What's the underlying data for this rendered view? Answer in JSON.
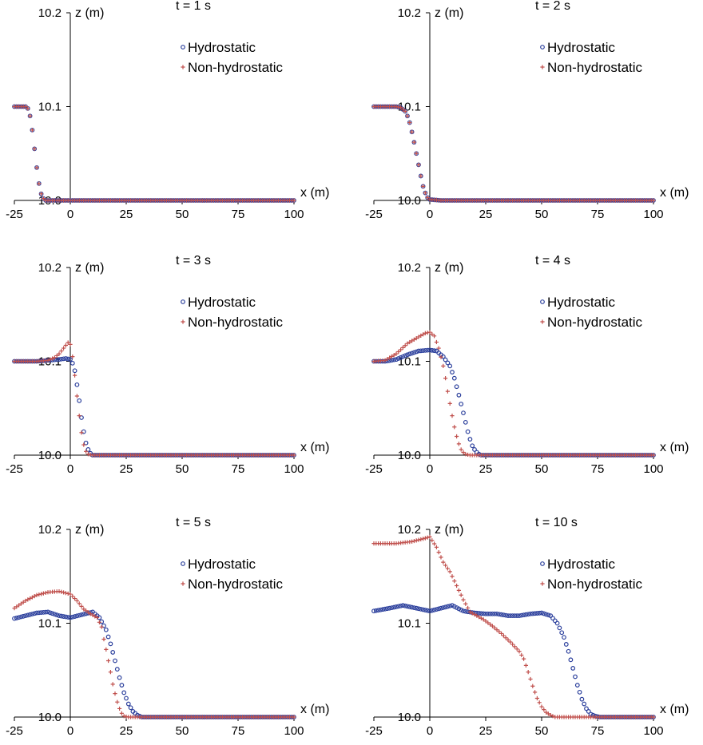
{
  "colors": {
    "hydrostatic": "#2b3f9c",
    "non_hydrostatic": "#c0504d",
    "axis": "#000000"
  },
  "chart_data": [
    {
      "type": "scatter",
      "title": "t = 1 s",
      "xlabel": "x (m)",
      "ylabel": "z (m)",
      "xlim": [
        -25,
        100
      ],
      "ylim": [
        10.0,
        10.2
      ],
      "xticks": [
        "-25",
        "0",
        "25",
        "50",
        "75",
        "100"
      ],
      "yticks": [
        "10.0",
        "10.1",
        "10.2"
      ],
      "legend_placement": "top-right",
      "series": [
        {
          "name": "Hydrostatic",
          "marker": "circle",
          "x": [
            -25,
            -20,
            -19,
            -18,
            -17,
            -16,
            -15,
            -14,
            -13,
            -12,
            -11,
            -10,
            -5,
            0,
            25,
            50,
            75,
            100
          ],
          "y": [
            10.1,
            10.1,
            10.098,
            10.09,
            10.075,
            10.055,
            10.035,
            10.018,
            10.007,
            10.002,
            10.0,
            10.0,
            10.0,
            10.0,
            10.0,
            10.0,
            10.0,
            10.0
          ]
        },
        {
          "name": "Non-hydrostatic",
          "marker": "plus",
          "x": [
            -25,
            -20,
            -19,
            -18,
            -17,
            -16,
            -15,
            -14,
            -13,
            -12,
            -11,
            -10,
            -5,
            0,
            25,
            50,
            75,
            100
          ],
          "y": [
            10.1,
            10.1,
            10.098,
            10.09,
            10.075,
            10.055,
            10.035,
            10.018,
            10.007,
            10.002,
            10.0,
            10.0,
            10.0,
            10.0,
            10.0,
            10.0,
            10.0,
            10.0
          ]
        }
      ]
    },
    {
      "type": "scatter",
      "title": "t = 2 s",
      "xlabel": "x (m)",
      "ylabel": "z (m)",
      "xlim": [
        -25,
        100
      ],
      "ylim": [
        10.0,
        10.2
      ],
      "xticks": [
        "-25",
        "0",
        "25",
        "50",
        "75",
        "100"
      ],
      "yticks": [
        "10.0",
        "10.1",
        "10.2"
      ],
      "legend_placement": "top-right",
      "series": [
        {
          "name": "Hydrostatic",
          "marker": "circle",
          "x": [
            -25,
            -15,
            -13,
            -11,
            -10,
            -9,
            -8,
            -7,
            -6,
            -5,
            -4,
            -3,
            -2,
            -1,
            0,
            5,
            25,
            50,
            75,
            100
          ],
          "y": [
            10.1,
            10.1,
            10.099,
            10.095,
            10.09,
            10.083,
            10.073,
            10.062,
            10.05,
            10.038,
            10.026,
            10.015,
            10.008,
            10.003,
            10.001,
            10.0,
            10.0,
            10.0,
            10.0,
            10.0
          ]
        },
        {
          "name": "Non-hydrostatic",
          "marker": "plus",
          "x": [
            -25,
            -15,
            -13,
            -11,
            -10,
            -9,
            -8,
            -7,
            -6,
            -5,
            -4,
            -3,
            -2,
            -1,
            0,
            5,
            25,
            50,
            75,
            100
          ],
          "y": [
            10.1,
            10.1,
            10.099,
            10.095,
            10.09,
            10.083,
            10.073,
            10.062,
            10.05,
            10.038,
            10.026,
            10.015,
            10.008,
            10.003,
            10.001,
            10.0,
            10.0,
            10.0,
            10.0,
            10.0
          ]
        }
      ]
    },
    {
      "type": "scatter",
      "title": "t = 3 s",
      "xlabel": "x (m)",
      "ylabel": "z (m)",
      "xlim": [
        -25,
        100
      ],
      "ylim": [
        10.0,
        10.2
      ],
      "xticks": [
        "-25",
        "0",
        "25",
        "50",
        "75",
        "100"
      ],
      "yticks": [
        "10.0",
        "10.1",
        "10.2"
      ],
      "legend_placement": "top-right",
      "series": [
        {
          "name": "Hydrostatic",
          "marker": "circle",
          "x": [
            -25,
            -15,
            -10,
            -5,
            -2,
            0,
            1,
            2,
            3,
            4,
            5,
            6,
            7,
            8,
            9,
            10,
            12,
            25,
            50,
            75,
            100
          ],
          "y": [
            10.1,
            10.1,
            10.101,
            10.102,
            10.103,
            10.102,
            10.098,
            10.09,
            10.075,
            10.058,
            10.04,
            10.025,
            10.013,
            10.006,
            10.002,
            10.0,
            10.0,
            10.0,
            10.0,
            10.0,
            10.0
          ]
        },
        {
          "name": "Non-hydrostatic",
          "marker": "plus",
          "x": [
            -25,
            -15,
            -10,
            -7,
            -5,
            -3,
            -1,
            0,
            1,
            2,
            3,
            4,
            5,
            6,
            7,
            8,
            10,
            25,
            50,
            75,
            100
          ],
          "y": [
            10.1,
            10.1,
            10.101,
            10.104,
            10.108,
            10.114,
            10.12,
            10.118,
            10.105,
            10.085,
            10.063,
            10.042,
            10.024,
            10.011,
            10.004,
            10.001,
            10.0,
            10.0,
            10.0,
            10.0,
            10.0
          ]
        }
      ]
    },
    {
      "type": "scatter",
      "title": "t = 4 s",
      "xlabel": "x (m)",
      "ylabel": "z (m)",
      "xlim": [
        -25,
        100
      ],
      "ylim": [
        10.0,
        10.2
      ],
      "xticks": [
        "-25",
        "0",
        "25",
        "50",
        "75",
        "100"
      ],
      "yticks": [
        "10.0",
        "10.1",
        "10.2"
      ],
      "legend_placement": "top-right",
      "series": [
        {
          "name": "Hydrostatic",
          "marker": "circle",
          "x": [
            -25,
            -20,
            -15,
            -10,
            -5,
            0,
            3,
            6,
            9,
            11,
            13,
            15,
            16,
            17,
            18,
            19,
            20,
            21,
            22,
            23,
            25,
            50,
            75,
            100
          ],
          "y": [
            10.1,
            10.1,
            10.102,
            10.107,
            10.111,
            10.112,
            10.111,
            10.105,
            10.095,
            10.082,
            10.064,
            10.045,
            10.035,
            10.025,
            10.017,
            10.01,
            10.006,
            10.003,
            10.001,
            10.0,
            10.0,
            10.0,
            10.0,
            10.0
          ]
        },
        {
          "name": "Non-hydrostatic",
          "marker": "plus",
          "x": [
            -25,
            -20,
            -15,
            -10,
            -5,
            -2,
            0,
            2,
            4,
            6,
            7,
            8,
            9,
            10,
            11,
            12,
            13,
            14,
            15,
            16,
            18,
            25,
            50,
            75,
            100
          ],
          "y": [
            10.1,
            10.101,
            10.108,
            10.119,
            10.126,
            10.13,
            10.131,
            10.127,
            10.114,
            10.095,
            10.082,
            10.068,
            10.055,
            10.042,
            10.03,
            10.02,
            10.012,
            10.006,
            10.003,
            10.001,
            10.0,
            10.0,
            10.0,
            10.0,
            10.0
          ]
        }
      ]
    },
    {
      "type": "scatter",
      "title": "t = 5 s",
      "xlabel": "x (m)",
      "ylabel": "z (m)",
      "xlim": [
        -25,
        100
      ],
      "ylim": [
        10.0,
        10.2
      ],
      "xticks": [
        "-25",
        "0",
        "25",
        "50",
        "75",
        "100"
      ],
      "yticks": [
        "10.0",
        "10.1",
        "10.2"
      ],
      "legend_placement": "top-right",
      "series": [
        {
          "name": "Hydrostatic",
          "marker": "circle",
          "x": [
            -25,
            -20,
            -15,
            -10,
            -5,
            0,
            5,
            10,
            13,
            16,
            18,
            20,
            22,
            24,
            26,
            28,
            30,
            32,
            35,
            50,
            75,
            100
          ],
          "y": [
            10.105,
            10.108,
            10.111,
            10.112,
            10.108,
            10.106,
            10.109,
            10.112,
            10.106,
            10.093,
            10.078,
            10.06,
            10.042,
            10.026,
            10.014,
            10.006,
            10.002,
            10.0,
            10.0,
            10.0,
            10.0,
            10.0
          ]
        },
        {
          "name": "Non-hydrostatic",
          "marker": "plus",
          "x": [
            -25,
            -20,
            -15,
            -10,
            -5,
            0,
            3,
            6,
            9,
            12,
            14,
            15,
            16,
            17,
            18,
            19,
            20,
            21,
            22,
            23,
            24,
            26,
            30,
            50,
            75,
            100
          ],
          "y": [
            10.116,
            10.124,
            10.13,
            10.133,
            10.134,
            10.131,
            10.124,
            10.115,
            10.11,
            10.106,
            10.096,
            10.083,
            10.072,
            10.06,
            10.048,
            10.035,
            10.025,
            10.016,
            10.009,
            10.004,
            10.001,
            10.0,
            10.0,
            10.0,
            10.0,
            10.0
          ]
        }
      ]
    },
    {
      "type": "scatter",
      "title": "t = 10 s",
      "xlabel": "x (m)",
      "ylabel": "z (m)",
      "xlim": [
        -25,
        100
      ],
      "ylim": [
        10.0,
        10.2
      ],
      "xticks": [
        "-25",
        "0",
        "25",
        "50",
        "75",
        "100"
      ],
      "yticks": [
        "10.0",
        "10.1",
        "10.2"
      ],
      "legend_placement": "top-right",
      "series": [
        {
          "name": "Hydrostatic",
          "marker": "circle",
          "x": [
            -25,
            -18,
            -12,
            -6,
            0,
            5,
            10,
            15,
            20,
            25,
            30,
            35,
            40,
            45,
            50,
            54,
            57,
            60,
            62,
            64,
            66,
            68,
            70,
            72,
            74,
            76,
            80,
            100
          ],
          "y": [
            10.113,
            10.116,
            10.119,
            10.116,
            10.113,
            10.116,
            10.119,
            10.113,
            10.111,
            10.11,
            10.11,
            10.108,
            10.108,
            10.11,
            10.111,
            10.108,
            10.1,
            10.085,
            10.07,
            10.052,
            10.034,
            10.019,
            10.009,
            10.003,
            10.001,
            10.0,
            10.0,
            10.0
          ]
        },
        {
          "name": "Non-hydrostatic",
          "marker": "plus",
          "x": [
            -25,
            -15,
            -8,
            -3,
            0,
            3,
            6,
            9,
            12,
            15,
            18,
            21,
            24,
            28,
            32,
            36,
            40,
            42,
            44,
            46,
            48,
            50,
            52,
            54,
            56,
            58,
            60,
            100
          ],
          "y": [
            10.185,
            10.185,
            10.187,
            10.19,
            10.192,
            10.181,
            10.165,
            10.155,
            10.14,
            10.125,
            10.112,
            10.108,
            10.104,
            10.097,
            10.089,
            10.08,
            10.07,
            10.062,
            10.048,
            10.033,
            10.02,
            10.011,
            10.005,
            10.002,
            10.0,
            10.0,
            10.0,
            10.0
          ]
        }
      ]
    }
  ]
}
